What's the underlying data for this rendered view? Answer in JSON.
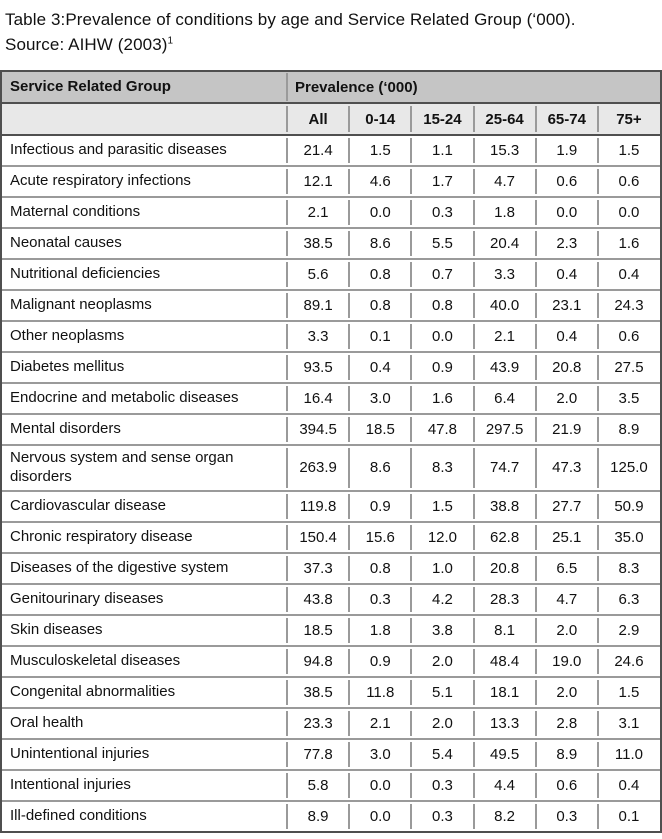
{
  "title": {
    "line1": "Table 3:Prevalence of conditions by age and Service Related Group (‘000).",
    "line2": "Source: AIHW (2003)",
    "footnote_marker": "1"
  },
  "table": {
    "header": {
      "group_label": "Service Related Group",
      "prevalence_label": "Prevalence (‘000)",
      "age_columns": [
        "All",
        "0-14",
        "15-24",
        "25-64",
        "65-74",
        "75+"
      ]
    },
    "rows": [
      {
        "label": "Infectious and parasitic diseases",
        "values": [
          "21.4",
          "1.5",
          "1.1",
          "15.3",
          "1.9",
          "1.5"
        ]
      },
      {
        "label": "Acute respiratory infections",
        "values": [
          "12.1",
          "4.6",
          "1.7",
          "4.7",
          "0.6",
          "0.6"
        ]
      },
      {
        "label": "Maternal conditions",
        "values": [
          "2.1",
          "0.0",
          "0.3",
          "1.8",
          "0.0",
          "0.0"
        ]
      },
      {
        "label": "Neonatal causes",
        "values": [
          "38.5",
          "8.6",
          "5.5",
          "20.4",
          "2.3",
          "1.6"
        ]
      },
      {
        "label": "Nutritional deficiencies",
        "values": [
          "5.6",
          "0.8",
          "0.7",
          "3.3",
          "0.4",
          "0.4"
        ]
      },
      {
        "label": "Malignant neoplasms",
        "values": [
          "89.1",
          "0.8",
          "0.8",
          "40.0",
          "23.1",
          "24.3"
        ]
      },
      {
        "label": "Other neoplasms",
        "values": [
          "3.3",
          "0.1",
          "0.0",
          "2.1",
          "0.4",
          "0.6"
        ]
      },
      {
        "label": "Diabetes mellitus",
        "values": [
          "93.5",
          "0.4",
          "0.9",
          "43.9",
          "20.8",
          "27.5"
        ]
      },
      {
        "label": "Endocrine and metabolic diseases",
        "values": [
          "16.4",
          "3.0",
          "1.6",
          "6.4",
          "2.0",
          "3.5"
        ]
      },
      {
        "label": "Mental disorders",
        "values": [
          "394.5",
          "18.5",
          "47.8",
          "297.5",
          "21.9",
          "8.9"
        ]
      },
      {
        "label": "Nervous system and sense organ disorders",
        "values": [
          "263.9",
          "8.6",
          "8.3",
          "74.7",
          "47.3",
          "125.0"
        ]
      },
      {
        "label": "Cardiovascular disease",
        "values": [
          "119.8",
          "0.9",
          "1.5",
          "38.8",
          "27.7",
          "50.9"
        ]
      },
      {
        "label": "Chronic respiratory disease",
        "values": [
          "150.4",
          "15.6",
          "12.0",
          "62.8",
          "25.1",
          "35.0"
        ]
      },
      {
        "label": "Diseases of the digestive system",
        "values": [
          "37.3",
          "0.8",
          "1.0",
          "20.8",
          "6.5",
          "8.3"
        ]
      },
      {
        "label": "Genitourinary diseases",
        "values": [
          "43.8",
          "0.3",
          "4.2",
          "28.3",
          "4.7",
          "6.3"
        ]
      },
      {
        "label": "Skin diseases",
        "values": [
          "18.5",
          "1.8",
          "3.8",
          "8.1",
          "2.0",
          "2.9"
        ]
      },
      {
        "label": "Musculoskeletal diseases",
        "values": [
          "94.8",
          "0.9",
          "2.0",
          "48.4",
          "19.0",
          "24.6"
        ]
      },
      {
        "label": "Congenital abnormalities",
        "values": [
          "38.5",
          "11.8",
          "5.1",
          "18.1",
          "2.0",
          "1.5"
        ]
      },
      {
        "label": "Oral health",
        "values": [
          "23.3",
          "2.1",
          "2.0",
          "13.3",
          "2.8",
          "3.1"
        ]
      },
      {
        "label": "Unintentional injuries",
        "values": [
          "77.8",
          "3.0",
          "5.4",
          "49.5",
          "8.9",
          "11.0"
        ]
      },
      {
        "label": "Intentional injuries",
        "values": [
          "5.8",
          "0.0",
          "0.3",
          "4.4",
          "0.6",
          "0.4"
        ]
      },
      {
        "label": "Ill-defined conditions",
        "values": [
          "8.9",
          "0.0",
          "0.3",
          "8.2",
          "0.3",
          "0.1"
        ]
      }
    ]
  },
  "colors": {
    "header_bg": "#c5c5c5",
    "subheader_bg": "#e8e8e8",
    "border_dark": "#4f4f4f",
    "border_light": "#9a9a9a",
    "text_color": "#111111"
  }
}
